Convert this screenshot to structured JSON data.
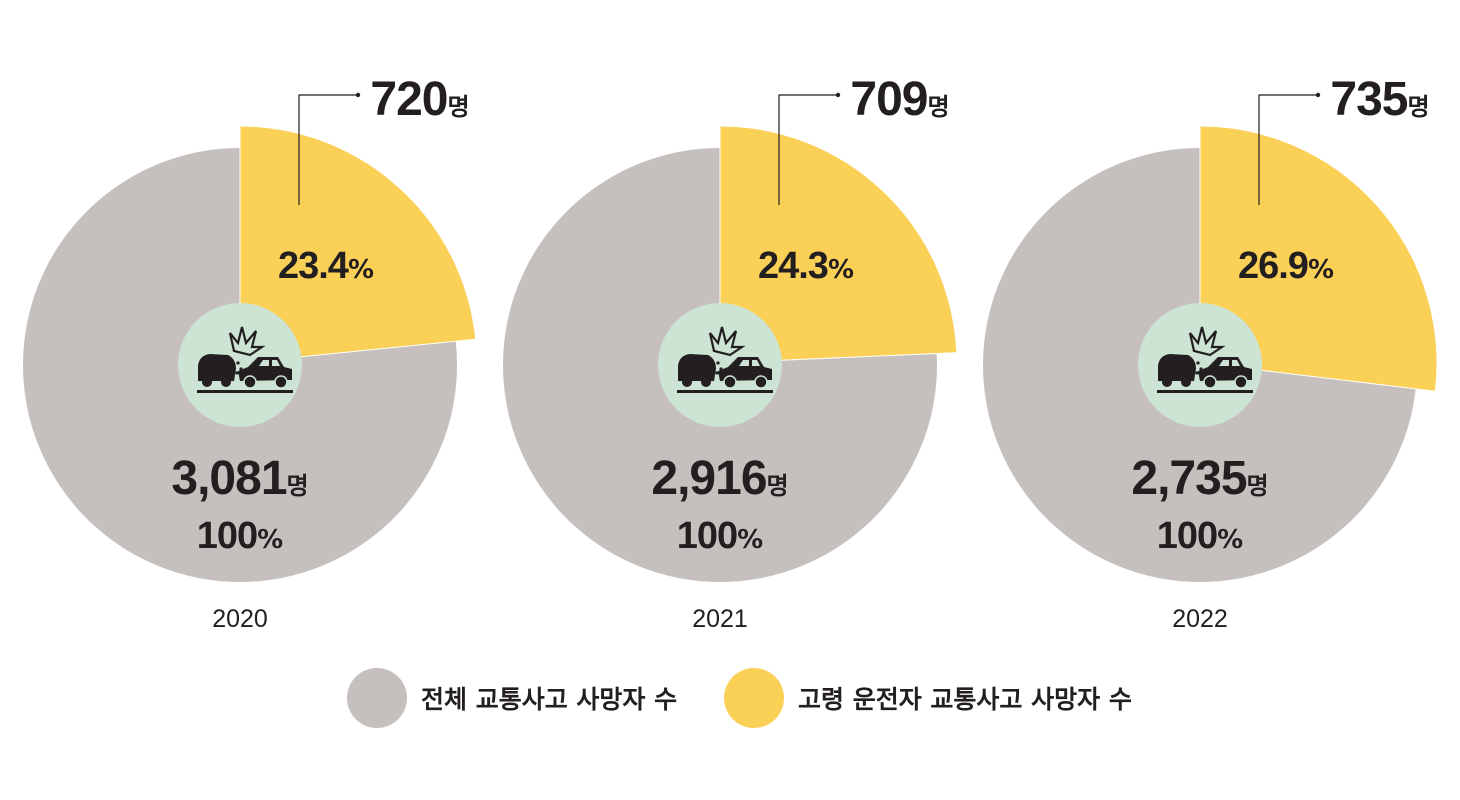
{
  "colors": {
    "total": "#c5c0bd",
    "elderly": "#fad057",
    "icon_bg": "#cde4d5",
    "text": "#231f20"
  },
  "icon": "car-crash-icon",
  "chart_data": [
    {
      "type": "pie",
      "year": "2020",
      "total": 3081,
      "total_label": "3,081",
      "total_pct_label": "100",
      "elderly": 720,
      "elderly_label": "720",
      "elderly_pct": 23.4,
      "elderly_pct_label": "23.4"
    },
    {
      "type": "pie",
      "year": "2021",
      "total": 2916,
      "total_label": "2,916",
      "total_pct_label": "100",
      "elderly": 709,
      "elderly_label": "709",
      "elderly_pct": 24.3,
      "elderly_pct_label": "24.3"
    },
    {
      "type": "pie",
      "year": "2022",
      "total": 2735,
      "total_label": "2,735",
      "total_pct_label": "100",
      "elderly": 735,
      "elderly_label": "735",
      "elderly_pct": 26.9,
      "elderly_pct_label": "26.9"
    }
  ],
  "units": {
    "person": "명",
    "percent": "%"
  },
  "legend": {
    "total_label": "전체 교통사고 사망자 수",
    "elderly_label": "고령 운전자 교통사고 사망자 수"
  }
}
